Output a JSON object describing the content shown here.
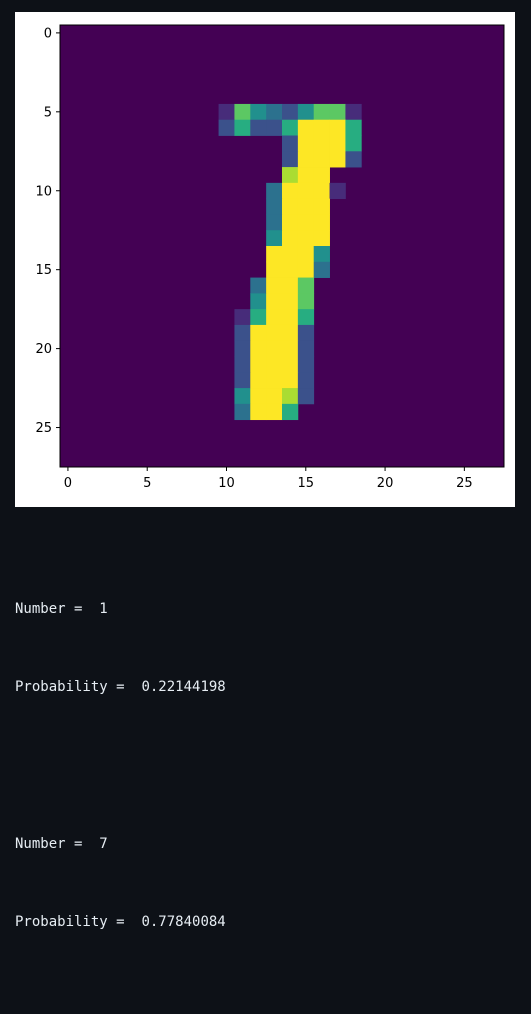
{
  "chart_data": {
    "type": "heatmap",
    "title": "",
    "xlabel": "",
    "ylabel": "",
    "colormap": "viridis",
    "grid": false,
    "nx": 28,
    "ny": 28,
    "xlim": [
      -0.5,
      27.5
    ],
    "ylim": [
      27.5,
      -0.5
    ],
    "x_ticks": [
      "0",
      "5",
      "10",
      "15",
      "20",
      "25"
    ],
    "y_ticks": [
      "0",
      "5",
      "10",
      "15",
      "20",
      "25"
    ],
    "colors": [
      "#440154",
      "#472c7a",
      "#3b518b",
      "#2c718e",
      "#21908d",
      "#27ad81",
      "#5cc863",
      "#aadc32",
      "#fde725"
    ],
    "values": {
      "5": {
        "10": 0.12,
        "11": 0.75,
        "12": 0.5,
        "13": 0.4,
        "14": 0.2,
        "15": 0.5,
        "16": 0.7,
        "17": 0.7,
        "18": 0.1
      },
      "6": {
        "10": 0.2,
        "11": 0.6,
        "12": 0.3,
        "13": 0.2,
        "14": 0.6,
        "15": 1.0,
        "16": 1.0,
        "17": 1.0,
        "18": 0.65
      },
      "7": {
        "14": 0.3,
        "15": 1.0,
        "16": 1.0,
        "17": 1.0,
        "18": 0.6
      },
      "8": {
        "14": 0.3,
        "15": 1.0,
        "16": 1.0,
        "17": 0.95,
        "18": 0.2
      },
      "9": {
        "14": 0.85,
        "15": 1.0,
        "16": 1.0
      },
      "10": {
        "13": 0.4,
        "14": 1.0,
        "15": 1.0,
        "16": 1.0,
        "17": 0.1
      },
      "11": {
        "13": 0.4,
        "14": 1.0,
        "15": 1.0,
        "16": 1.0
      },
      "12": {
        "13": 0.4,
        "14": 1.0,
        "15": 1.0,
        "16": 1.0
      },
      "13": {
        "13": 0.55,
        "14": 1.0,
        "15": 1.0,
        "16": 1.0
      },
      "14": {
        "13": 1.0,
        "14": 1.0,
        "15": 0.95,
        "16": 0.45
      },
      "15": {
        "13": 1.0,
        "14": 1.0,
        "15": 1.0,
        "16": 0.35
      },
      "16": {
        "12": 0.35,
        "13": 1.0,
        "14": 1.0,
        "15": 0.8
      },
      "17": {
        "12": 0.55,
        "13": 1.0,
        "14": 1.0,
        "15": 0.8
      },
      "18": {
        "11": 0.1,
        "12": 0.65,
        "13": 1.0,
        "14": 1.0,
        "15": 0.6
      },
      "19": {
        "11": 0.2,
        "12": 1.0,
        "13": 1.0,
        "14": 1.0,
        "15": 0.3
      },
      "20": {
        "11": 0.2,
        "12": 1.0,
        "13": 1.0,
        "14": 1.0,
        "15": 0.25
      },
      "21": {
        "11": 0.2,
        "12": 1.0,
        "13": 1.0,
        "14": 1.0,
        "15": 0.25
      },
      "22": {
        "11": 0.2,
        "12": 1.0,
        "13": 1.0,
        "14": 1.0,
        "15": 0.25
      },
      "23": {
        "11": 0.55,
        "12": 1.0,
        "13": 1.0,
        "14": 0.9,
        "15": 0.25
      },
      "24": {
        "11": 0.35,
        "12": 1.0,
        "13": 1.0,
        "14": 0.6
      }
    }
  },
  "output": {
    "results": [
      {
        "number_label": "Number =  ",
        "number_value": "1",
        "prob_label": "Probability =  ",
        "prob_value": "0.22144198"
      },
      {
        "number_label": "Number =  ",
        "number_value": "7",
        "prob_label": "Probability =  ",
        "prob_value": "0.77840084"
      }
    ]
  }
}
